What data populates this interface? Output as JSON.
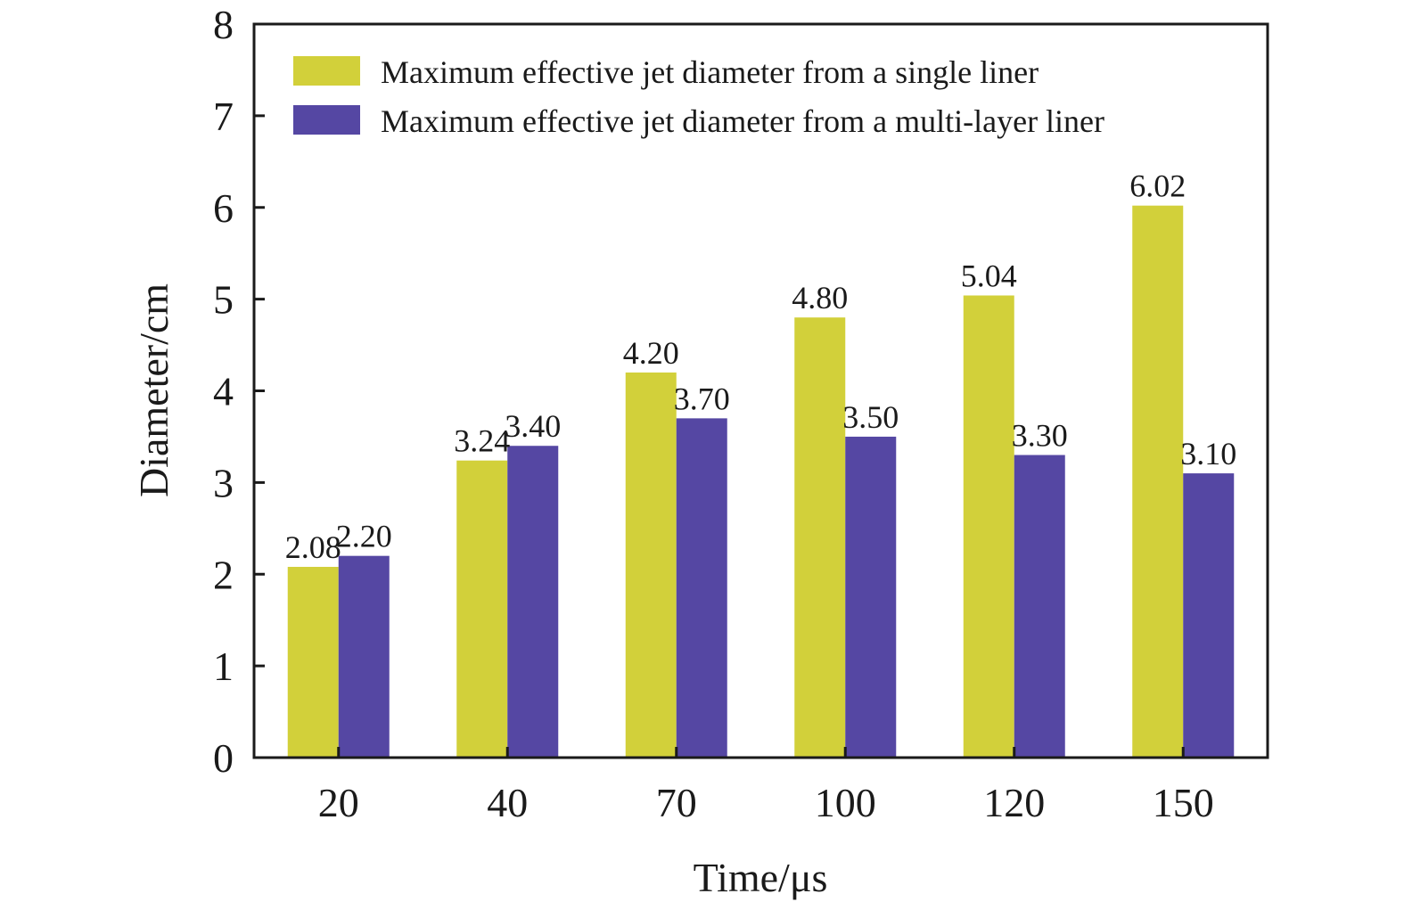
{
  "chart_data": {
    "type": "bar",
    "title": "",
    "xlabel": "Time/μs",
    "ylabel": "Diameter/cm",
    "categories": [
      "20",
      "40",
      "70",
      "100",
      "120",
      "150"
    ],
    "ylim": [
      0,
      8
    ],
    "yticks": [
      "0",
      "1",
      "2",
      "3",
      "4",
      "5",
      "6",
      "7",
      "8"
    ],
    "grid": false,
    "legend_position": "top-left",
    "series": [
      {
        "name": "Maximum effective jet diameter from a single liner",
        "color": "#d2d03a",
        "values": [
          2.08,
          3.24,
          4.2,
          4.8,
          5.04,
          6.02
        ],
        "labels": [
          "2.08",
          "3.24",
          "4.20",
          "4.80",
          "5.04",
          "6.02"
        ]
      },
      {
        "name": "Maximum effective jet diameter from a multi-layer liner",
        "color": "#5547a3",
        "values": [
          2.2,
          3.4,
          3.7,
          3.5,
          3.3,
          3.1
        ],
        "labels": [
          "2.20",
          "3.40",
          "3.70",
          "3.50",
          "3.30",
          "3.10"
        ]
      }
    ]
  }
}
